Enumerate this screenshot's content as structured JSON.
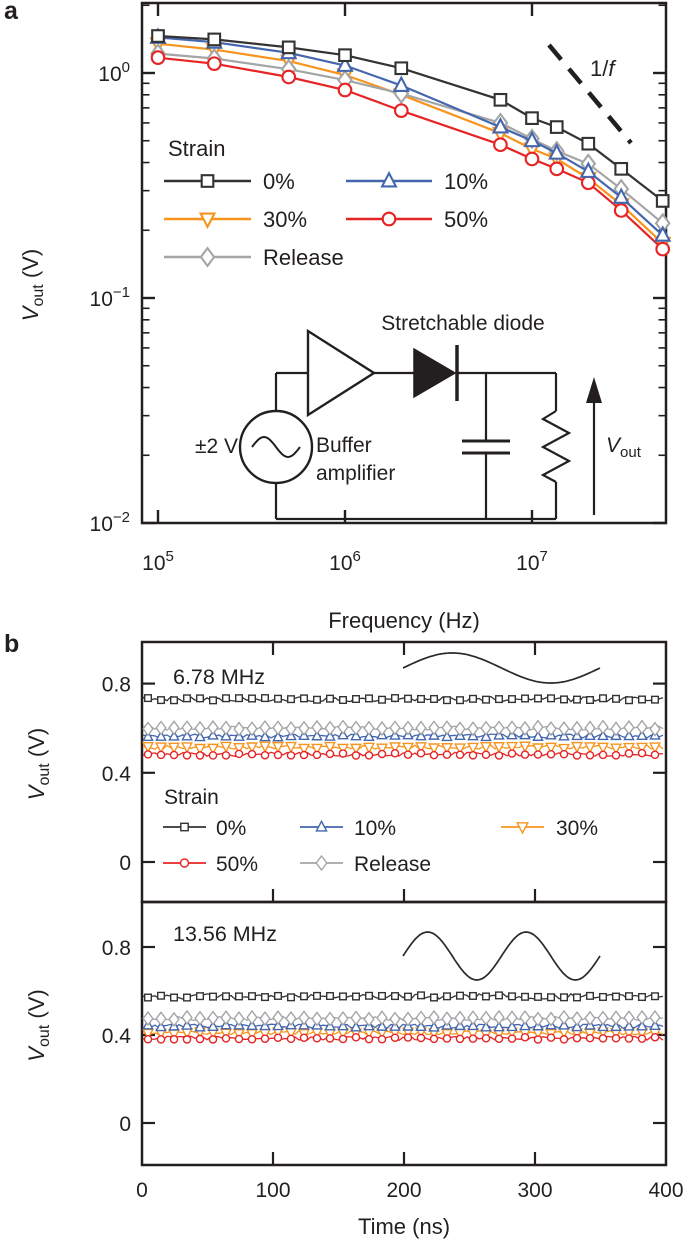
{
  "panel_a": {
    "panel_label": "a",
    "x_axis": {
      "title": "Frequency (Hz)",
      "scale": "log",
      "tick_values": [
        100000,
        1000000,
        10000000
      ],
      "tick_labels": [
        {
          "base": "10",
          "exp": "5"
        },
        {
          "base": "10",
          "exp": "6"
        },
        {
          "base": "10",
          "exp": "7"
        }
      ],
      "range_hz": [
        82000,
        52000000
      ]
    },
    "y_axis": {
      "title_var": "V",
      "title_sub": "out",
      "title_rest": " (V)",
      "scale": "log",
      "tick_values": [
        1,
        0.1,
        0.01
      ],
      "tick_labels": [
        {
          "base": "10",
          "exp": "0"
        },
        {
          "base": "10",
          "exp": "−1"
        },
        {
          "base": "10",
          "exp": "−2"
        }
      ],
      "range_v": [
        0.01,
        2.05
      ]
    },
    "annotation_1f": {
      "pre": "1/",
      "italic": "f"
    },
    "legend": {
      "title": "Strain",
      "items": [
        "0%",
        "10%",
        "30%",
        "50%",
        "Release"
      ]
    },
    "chart_data": {
      "type": "line",
      "x_frequencies_hz": [
        100000,
        200000,
        500000,
        1000000,
        2000000,
        6780000,
        10000000,
        13560000,
        20000000,
        30000000,
        50000000
      ],
      "series": [
        {
          "name": "0%",
          "marker": "square",
          "color": "#333333",
          "values_v": [
            1.46,
            1.41,
            1.3,
            1.2,
            1.05,
            0.76,
            0.63,
            0.575,
            0.485,
            0.375,
            0.27
          ]
        },
        {
          "name": "10%",
          "marker": "triangle-up",
          "color": "#4466ad",
          "values_v": [
            1.44,
            1.37,
            1.23,
            1.08,
            0.88,
            0.575,
            0.5,
            0.44,
            0.365,
            0.28,
            0.19
          ]
        },
        {
          "name": "30%",
          "marker": "triangle-down",
          "color": "#f7941e",
          "values_v": [
            1.35,
            1.27,
            1.13,
            0.98,
            0.8,
            0.54,
            0.46,
            0.415,
            0.34,
            0.26,
            0.175
          ]
        },
        {
          "name": "50%",
          "marker": "circle",
          "color": "#e62425",
          "values_v": [
            1.17,
            1.1,
            0.96,
            0.84,
            0.68,
            0.48,
            0.415,
            0.375,
            0.325,
            0.245,
            0.165
          ]
        },
        {
          "name": "Release",
          "marker": "diamond",
          "color": "#a3a5a7",
          "values_v": [
            1.22,
            1.16,
            1.04,
            0.93,
            0.81,
            0.6,
            0.51,
            0.45,
            0.395,
            0.305,
            0.215
          ]
        }
      ]
    },
    "inset_circuit": {
      "source_label": "±2 V",
      "amplifier_label_line1": "Buffer",
      "amplifier_label_line2": "amplifier",
      "diode_label": "Stretchable diode",
      "vout_var": "V",
      "vout_sub": "out"
    }
  },
  "panel_b": {
    "panel_label": "b",
    "x_axis": {
      "title": "Time (ns)",
      "tick_values": [
        0,
        100,
        200,
        300,
        400
      ],
      "tick_labels": [
        "0",
        "100",
        "200",
        "300",
        "400"
      ],
      "range_ns": [
        0,
        400
      ]
    },
    "y_axis": {
      "title_var": "V",
      "title_sub": "out",
      "title_rest": " (V)",
      "tick_values": [
        0,
        0.4,
        0.8
      ],
      "tick_labels": [
        "0",
        "0.4",
        "0.8"
      ],
      "range_v": [
        -0.18,
        0.99
      ]
    },
    "legend": {
      "title": "Strain",
      "items": [
        "0%",
        "10%",
        "30%",
        "50%",
        "Release"
      ]
    },
    "chart_data": [
      {
        "type": "line",
        "subplot_label": "6.78 MHz",
        "sine_inset_cycles": 1,
        "series": [
          {
            "name": "0%",
            "marker": "square",
            "color": "#333333",
            "level_v": 0.73
          },
          {
            "name": "10%",
            "marker": "triangle-up",
            "color": "#4466ad",
            "level_v": 0.565
          },
          {
            "name": "30%",
            "marker": "triangle-down",
            "color": "#f7941e",
            "level_v": 0.515
          },
          {
            "name": "50%",
            "marker": "circle",
            "color": "#e62425",
            "level_v": 0.483
          },
          {
            "name": "Release",
            "marker": "diamond",
            "color": "#a3a5a7",
            "level_v": 0.6
          }
        ]
      },
      {
        "type": "line",
        "subplot_label": "13.56 MHz",
        "sine_inset_cycles": 2,
        "series": [
          {
            "name": "0%",
            "marker": "square",
            "color": "#333333",
            "level_v": 0.575
          },
          {
            "name": "10%",
            "marker": "triangle-up",
            "color": "#4466ad",
            "level_v": 0.44
          },
          {
            "name": "30%",
            "marker": "triangle-down",
            "color": "#f7941e",
            "level_v": 0.41
          },
          {
            "name": "50%",
            "marker": "circle",
            "color": "#e62425",
            "level_v": 0.385
          },
          {
            "name": "Release",
            "marker": "diamond",
            "color": "#a3a5a7",
            "level_v": 0.475
          }
        ]
      }
    ]
  }
}
